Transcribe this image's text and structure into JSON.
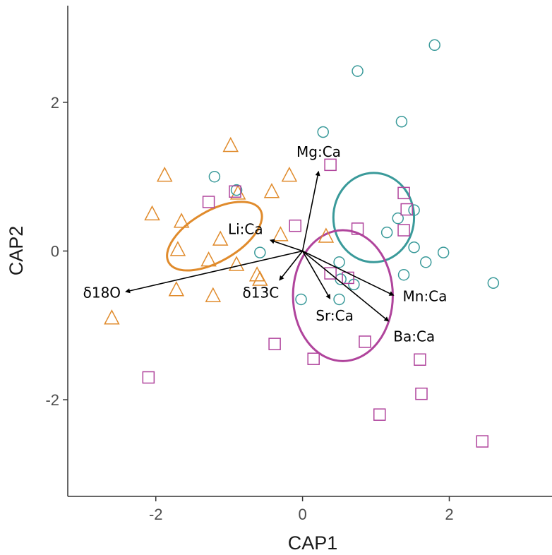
{
  "chart_data": {
    "type": "scatter",
    "title": "",
    "xlabel": "CAP1",
    "ylabel": "CAP2",
    "xlim": [
      -3.2,
      3.4
    ],
    "ylim": [
      -3.3,
      3.3
    ],
    "x_ticks": [
      -2,
      0,
      2
    ],
    "y_ticks": [
      -2,
      0,
      2
    ],
    "grid": false,
    "legend": "none",
    "series": [
      {
        "marker": "triangle",
        "color": "#e08b2c",
        "points": [
          [
            -2.05,
            0.5
          ],
          [
            -1.88,
            1.02
          ],
          [
            -1.65,
            0.4
          ],
          [
            -1.7,
            0.02
          ],
          [
            -1.72,
            -0.52
          ],
          [
            -1.28,
            -0.12
          ],
          [
            -1.22,
            -0.6
          ],
          [
            -1.12,
            0.16
          ],
          [
            -0.98,
            1.42
          ],
          [
            -0.88,
            0.78
          ],
          [
            -0.9,
            -0.18
          ],
          [
            -0.62,
            -0.32
          ],
          [
            -0.58,
            -0.38
          ],
          [
            -0.42,
            0.8
          ],
          [
            -0.3,
            0.22
          ],
          [
            -0.18,
            1.02
          ],
          [
            0.32,
            0.2
          ],
          [
            -2.6,
            -0.9
          ]
        ],
        "ellipse": {
          "center": [
            -1.2,
            0.2
          ],
          "semi_axes": [
            0.72,
            0.34
          ],
          "angle_deg": 30
        }
      },
      {
        "marker": "circle",
        "color": "#3a9a9a",
        "points": [
          [
            1.8,
            2.77
          ],
          [
            0.75,
            2.42
          ],
          [
            1.35,
            1.74
          ],
          [
            0.28,
            1.6
          ],
          [
            -1.2,
            1.0
          ],
          [
            -0.9,
            0.82
          ],
          [
            1.52,
            0.55
          ],
          [
            1.3,
            0.44
          ],
          [
            1.15,
            0.25
          ],
          [
            1.52,
            0.05
          ],
          [
            1.92,
            -0.02
          ],
          [
            1.68,
            -0.15
          ],
          [
            1.38,
            -0.32
          ],
          [
            2.6,
            -0.43
          ],
          [
            -0.58,
            -0.02
          ],
          [
            0.5,
            -0.15
          ],
          [
            0.52,
            -0.38
          ],
          [
            0.7,
            -0.45
          ],
          [
            -0.02,
            -0.65
          ],
          [
            0.5,
            -0.65
          ]
        ],
        "ellipse": {
          "center": [
            0.97,
            0.45
          ],
          "semi_axes": [
            0.55,
            0.6
          ],
          "angle_deg": 0
        }
      },
      {
        "marker": "square",
        "color": "#b0449c",
        "points": [
          [
            0.38,
            1.16
          ],
          [
            -1.28,
            0.66
          ],
          [
            -0.92,
            0.8
          ],
          [
            1.38,
            0.78
          ],
          [
            1.42,
            0.56
          ],
          [
            1.38,
            0.28
          ],
          [
            0.75,
            0.3
          ],
          [
            -0.1,
            0.34
          ],
          [
            0.38,
            -0.3
          ],
          [
            0.62,
            -0.36
          ],
          [
            -0.38,
            -1.25
          ],
          [
            0.15,
            -1.45
          ],
          [
            0.85,
            -1.22
          ],
          [
            1.6,
            -1.46
          ],
          [
            1.62,
            -1.92
          ],
          [
            1.05,
            -2.2
          ],
          [
            2.45,
            -2.56
          ],
          [
            -2.1,
            -1.7
          ]
        ],
        "ellipse": {
          "center": [
            0.55,
            -0.6
          ],
          "semi_axes": [
            0.68,
            0.88
          ],
          "angle_deg": 0
        }
      }
    ],
    "vectors": [
      {
        "label": "Mg:Ca",
        "x": 0.22,
        "y": 1.08
      },
      {
        "label": "Li:Ca",
        "x": -0.45,
        "y": 0.15
      },
      {
        "label": "δ18O",
        "x": -2.42,
        "y": -0.55
      },
      {
        "label": "δ13C",
        "x": -0.32,
        "y": -0.4
      },
      {
        "label": "Sr:Ca",
        "x": 0.38,
        "y": -0.65
      },
      {
        "label": "Mn:Ca",
        "x": 1.25,
        "y": -0.6
      },
      {
        "label": "Ba:Ca",
        "x": 1.18,
        "y": -0.95
      }
    ]
  }
}
